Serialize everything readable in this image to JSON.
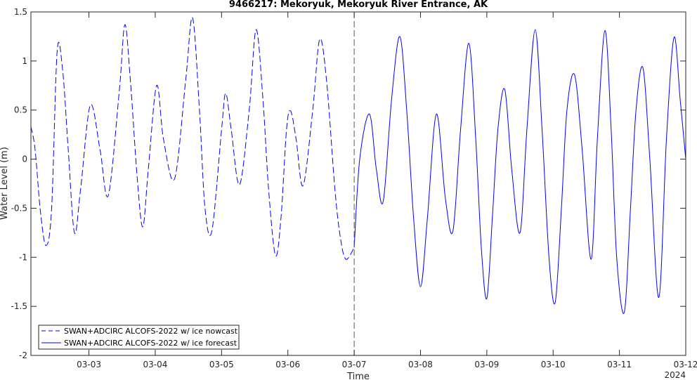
{
  "chart_data": {
    "type": "line",
    "title": "9466217: Mekoryuk, Mekoryuk River Entrance, AK",
    "xlabel": "Time",
    "ylabel": "Water Level (m)",
    "x_year_label": "2024",
    "xlim": [
      "03-02 03:00",
      "03-12 00:00"
    ],
    "ylim": [
      -2,
      1.5
    ],
    "grid": false,
    "legend_position": "bottom-left",
    "x_ticks": [
      "03-03",
      "03-04",
      "03-05",
      "03-06",
      "03-07",
      "03-08",
      "03-09",
      "03-10",
      "03-11",
      "03-12"
    ],
    "y_ticks": [
      "-2",
      "-1.5",
      "-1",
      "-0.5",
      "0",
      "0.5",
      "1",
      "1.5"
    ],
    "nowcast_forecast_divider": "03-07 00:00",
    "series": [
      {
        "name": "SWAN+ADCIRC ALCOFS-2022 w/ ice nowcast",
        "style": "dashed",
        "color": "#0000ff",
        "points": [
          [
            "03-02 03:00",
            0.33
          ],
          [
            "03-02 04:30",
            0.1
          ],
          [
            "03-02 06:30",
            -0.55
          ],
          [
            "03-02 08:30",
            -0.88
          ],
          [
            "03-02 10:30",
            -0.5
          ],
          [
            "03-02 12:30",
            1.1
          ],
          [
            "03-02 14:30",
            0.9
          ],
          [
            "03-02 16:30",
            0.1
          ],
          [
            "03-02 18:45",
            -0.75
          ],
          [
            "03-02 21:00",
            -0.3
          ],
          [
            "03-03 00:30",
            0.55
          ],
          [
            "03-03 04:00",
            0.1
          ],
          [
            "03-03 07:00",
            -0.37
          ],
          [
            "03-03 11:00",
            0.7
          ],
          [
            "03-03 13:00",
            1.37
          ],
          [
            "03-03 15:00",
            0.8
          ],
          [
            "03-03 17:30",
            -0.2
          ],
          [
            "03-03 19:30",
            -0.69
          ],
          [
            "03-03 21:30",
            -0.1
          ],
          [
            "03-04 00:30",
            0.75
          ],
          [
            "03-04 03:00",
            0.2
          ],
          [
            "03-04 07:00",
            -0.2
          ],
          [
            "03-04 11:00",
            0.8
          ],
          [
            "03-04 13:30",
            1.44
          ],
          [
            "03-04 16:00",
            0.5
          ],
          [
            "03-04 18:00",
            -0.5
          ],
          [
            "03-04 20:30",
            -0.73
          ],
          [
            "03-05 00:00",
            0.3
          ],
          [
            "03-05 01:30",
            0.67
          ],
          [
            "03-05 03:30",
            0.3
          ],
          [
            "03-05 06:30",
            -0.26
          ],
          [
            "03-05 10:00",
            0.5
          ],
          [
            "03-05 12:30",
            1.32
          ],
          [
            "03-05 15:00",
            0.6
          ],
          [
            "03-05 17:00",
            -0.3
          ],
          [
            "03-05 19:30",
            -0.98
          ],
          [
            "03-05 21:30",
            -0.6
          ],
          [
            "03-05 23:30",
            0.3
          ],
          [
            "03-06 01:00",
            0.49
          ],
          [
            "03-06 03:00",
            0.2
          ],
          [
            "03-06 05:30",
            -0.27
          ],
          [
            "03-06 09:00",
            0.5
          ],
          [
            "03-06 11:30",
            1.22
          ],
          [
            "03-06 14:00",
            0.8
          ],
          [
            "03-06 17:00",
            -0.3
          ],
          [
            "03-06 19:00",
            -0.8
          ],
          [
            "03-06 21:00",
            -1.02
          ],
          [
            "03-07 00:00",
            -0.9
          ]
        ]
      },
      {
        "name": "SWAN+ADCIRC ALCOFS-2022 w/ ice forecast",
        "style": "solid",
        "color": "#0000ff",
        "points": [
          [
            "03-07 00:00",
            -0.9
          ],
          [
            "03-07 02:00",
            0.0
          ],
          [
            "03-07 05:30",
            0.46
          ],
          [
            "03-07 08:00",
            -0.1
          ],
          [
            "03-07 10:30",
            -0.43
          ],
          [
            "03-07 13:30",
            0.6
          ],
          [
            "03-07 16:30",
            1.25
          ],
          [
            "03-07 19:00",
            0.5
          ],
          [
            "03-07 21:30",
            -0.6
          ],
          [
            "03-08 00:00",
            -1.3
          ],
          [
            "03-08 02:30",
            -0.6
          ],
          [
            "03-08 05:45",
            0.46
          ],
          [
            "03-08 09:00",
            -0.4
          ],
          [
            "03-08 11:45",
            -0.73
          ],
          [
            "03-08 14:30",
            0.3
          ],
          [
            "03-08 17:30",
            1.18
          ],
          [
            "03-08 20:00",
            0.2
          ],
          [
            "03-08 22:00",
            -0.9
          ],
          [
            "03-09 00:00",
            -1.42
          ],
          [
            "03-09 02:00",
            -0.6
          ],
          [
            "03-09 04:00",
            0.3
          ],
          [
            "03-09 06:30",
            0.71
          ],
          [
            "03-09 09:00",
            -0.1
          ],
          [
            "03-09 12:00",
            -0.75
          ],
          [
            "03-09 14:30",
            0.3
          ],
          [
            "03-09 17:30",
            1.32
          ],
          [
            "03-09 20:00",
            0.3
          ],
          [
            "03-09 22:30",
            -1.0
          ],
          [
            "03-10 00:45",
            -1.46
          ],
          [
            "03-10 03:00",
            -0.5
          ],
          [
            "03-10 05:00",
            0.5
          ],
          [
            "03-10 07:45",
            0.86
          ],
          [
            "03-10 10:30",
            0.1
          ],
          [
            "03-10 13:45",
            -1.02
          ],
          [
            "03-10 16:00",
            0.2
          ],
          [
            "03-10 18:45",
            1.31
          ],
          [
            "03-10 21:00",
            0.3
          ],
          [
            "03-10 23:00",
            -1.0
          ],
          [
            "03-11 01:45",
            -1.56
          ],
          [
            "03-11 04:00",
            -0.5
          ],
          [
            "03-11 06:00",
            0.5
          ],
          [
            "03-11 08:30",
            0.93
          ],
          [
            "03-11 11:00",
            0.0
          ],
          [
            "03-11 14:15",
            -1.41
          ],
          [
            "03-11 17:00",
            0.2
          ],
          [
            "03-11 19:45",
            1.24
          ],
          [
            "03-11 22:00",
            0.6
          ],
          [
            "03-12 00:00",
            0.0
          ]
        ]
      }
    ]
  }
}
